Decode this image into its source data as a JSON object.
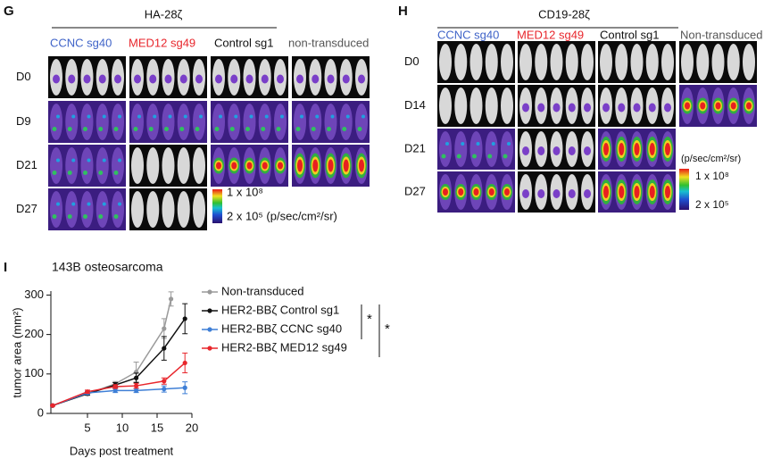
{
  "panel_g": {
    "label": "G",
    "title": "HA-28ζ",
    "groups": [
      "CCNC sg40",
      "MED12 sg49",
      "Control sg1",
      "non-transduced"
    ],
    "rows": [
      "D0",
      "D9",
      "D21",
      "D27"
    ],
    "scale": {
      "max": "1 x 10⁸",
      "min": "2 x 10⁵ (p/sec/cm²/sr)"
    }
  },
  "panel_h": {
    "label": "H",
    "title": "CD19-28ζ",
    "groups": [
      "CCNC sg40",
      "MED12 sg49",
      "Control sg1",
      "Non-transduced"
    ],
    "rows": [
      "D0",
      "D14",
      "D21",
      "D27"
    ],
    "scale": {
      "unit": "(p/sec/cm²/sr)",
      "max": "1 x 10⁸",
      "min": "2 x 10⁵"
    }
  },
  "panel_i_label": "I",
  "chart_data": {
    "type": "line",
    "title": "143B osteosarcoma",
    "x_label": "Days post treatment",
    "y_label": "tumor area (mm²)",
    "xlim": [
      0,
      20
    ],
    "xticks": [
      5,
      10,
      15,
      20
    ],
    "ylim": [
      0,
      310
    ],
    "yticks": [
      0,
      100,
      200,
      300
    ],
    "series": [
      {
        "name": "Non-transduced",
        "color": "#9a9a9a",
        "x": [
          0,
          5,
          9,
          12,
          16,
          17
        ],
        "values": [
          20,
          50,
          75,
          105,
          215,
          290
        ],
        "errors": [
          2,
          4,
          6,
          25,
          25,
          18
        ]
      },
      {
        "name": "HER2-BBζ Control sg1",
        "color": "#111111",
        "x": [
          0,
          5,
          9,
          12,
          16,
          19
        ],
        "values": [
          20,
          50,
          72,
          90,
          165,
          240
        ],
        "errors": [
          2,
          4,
          6,
          12,
          30,
          38
        ]
      },
      {
        "name": "HER2-BBζ CCNC sg40",
        "color": "#3f7fd6",
        "x": [
          0,
          5,
          9,
          12,
          16,
          19
        ],
        "values": [
          20,
          52,
          58,
          58,
          62,
          65
        ],
        "errors": [
          2,
          4,
          5,
          5,
          8,
          15
        ]
      },
      {
        "name": "HER2-BBζ MED12 sg49",
        "color": "#e8262c",
        "x": [
          0,
          5,
          9,
          12,
          16,
          19
        ],
        "values": [
          20,
          55,
          68,
          70,
          82,
          128
        ],
        "errors": [
          2,
          4,
          5,
          6,
          8,
          25
        ]
      }
    ],
    "annotations": [
      "*",
      "*"
    ]
  }
}
